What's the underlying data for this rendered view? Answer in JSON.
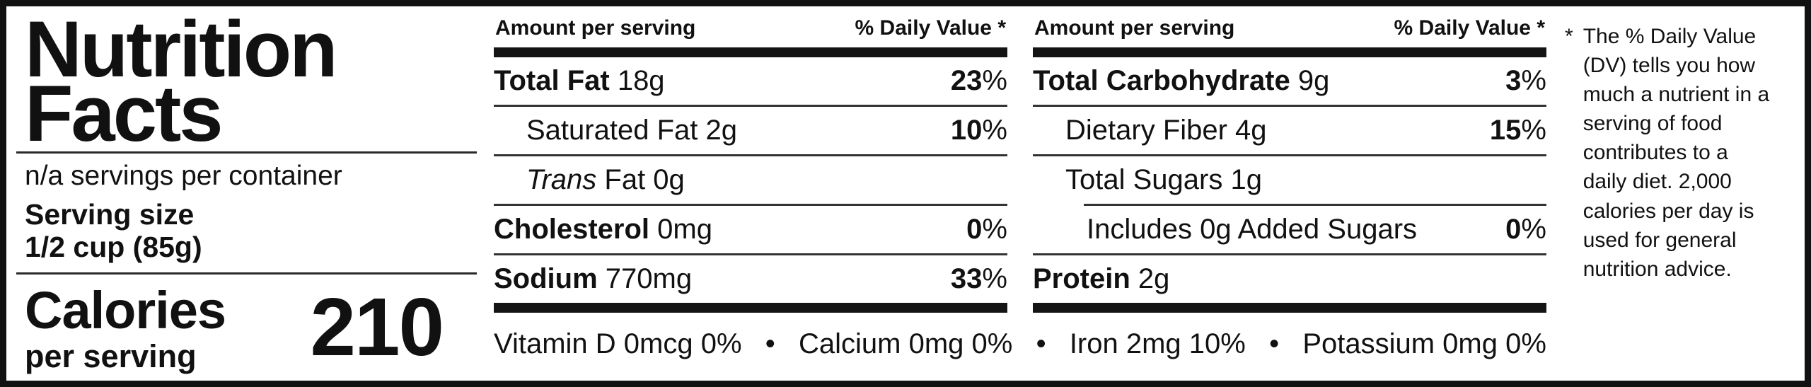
{
  "label": {
    "title_line1": "Nutrition",
    "title_line2": "Facts",
    "servings_per_container": "n/a servings per container",
    "serving_size_label": "Serving size",
    "serving_size_value": "1/2 cup (85g)",
    "calories_label": "Calories",
    "calories_sublabel": "per serving",
    "calories_value": "210"
  },
  "columns": [
    {
      "header_left": "Amount per serving",
      "header_right": "% Daily Value *",
      "rows": [
        {
          "bold": "Total Fat",
          "reg": " 18g",
          "dv": "23",
          "dvu": "%"
        },
        {
          "reg": "Saturated Fat 2g",
          "dv": "10",
          "dvu": "%"
        },
        {
          "ital": "Trans",
          "reg": " Fat 0g"
        },
        {
          "bold": "Cholesterol",
          "reg": " 0mg",
          "dv": "0",
          "dvu": "%"
        },
        {
          "bold": "Sodium",
          "reg": " 770mg",
          "dv": "33",
          "dvu": "%"
        }
      ]
    },
    {
      "header_left": "Amount per serving",
      "header_right": "% Daily Value *",
      "rows": [
        {
          "bold": "Total Carbohydrate",
          "reg": " 9g",
          "dv": "3",
          "dvu": "%"
        },
        {
          "reg": "Dietary Fiber 4g",
          "dv": "15",
          "dvu": "%"
        },
        {
          "reg": "Total Sugars 1g"
        },
        {
          "reg": "Includes 0g Added Sugars",
          "dv": "0",
          "dvu": "%"
        },
        {
          "bold": "Protein",
          "reg": " 2g"
        }
      ]
    }
  ],
  "micronutrients": {
    "separator": "•",
    "items": [
      "Vitamin D 0mcg 0%",
      "Calcium 0mg 0%",
      "Iron 2mg 10%",
      "Potassium 0mg 0%"
    ]
  },
  "footnote": {
    "marker": "*",
    "text": "The % Daily Value (DV) tells you how much a nutrient in a serving of food contributes to a daily diet. 2,000 calories per day is used for general nutrition advice."
  }
}
